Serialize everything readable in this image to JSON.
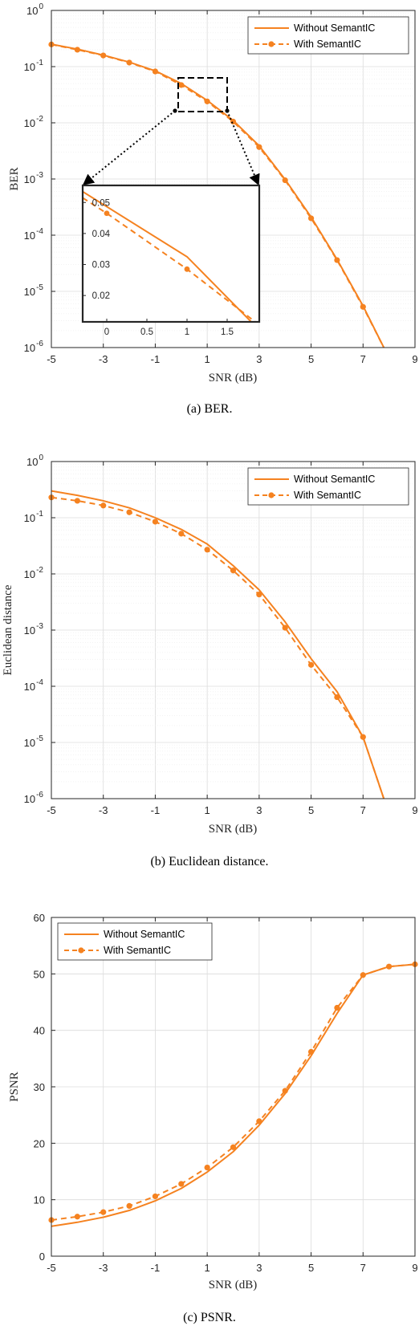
{
  "colors": {
    "series": "#f58220",
    "axis": "#262626",
    "grid": "#dcdcdc"
  },
  "chart_data": [
    {
      "type": "line",
      "caption": "(a)  BER.",
      "xlabel": "SNR (dB)",
      "ylabel": "BER",
      "xlim": [
        -5,
        9
      ],
      "ylim": [
        1e-06,
        1
      ],
      "yscale": "log",
      "grid": true,
      "legend_position": "top-right",
      "xticks": [
        -5,
        -3,
        -1,
        1,
        3,
        5,
        7,
        9
      ],
      "xtick_labels": [
        "-5",
        "-3",
        "-1",
        "1",
        "3",
        "5",
        "7",
        "9"
      ],
      "yticks": [
        0,
        -1,
        -2,
        -3,
        -4,
        -5,
        -6
      ],
      "ytick_labels": [
        "0",
        "-1",
        "-2",
        "-3",
        "-4",
        "-5",
        "-6"
      ],
      "ytick_base": "10",
      "series": [
        {
          "name": "Without SemantIC",
          "style": "solid",
          "markers": false,
          "x": [
            -5,
            -4,
            -3,
            -2,
            -1,
            0,
            1,
            2,
            3,
            4,
            5,
            6,
            7,
            7.8
          ],
          "y": [
            0.25,
            0.205,
            0.16,
            0.12,
            0.084,
            0.05,
            0.025,
            0.011,
            0.0039,
            0.00098,
            0.00021,
            3.7e-05,
            5.5e-06,
            1e-06
          ]
        },
        {
          "name": "With SemantIC",
          "style": "dashed",
          "markers": true,
          "x": [
            -5,
            -4,
            -3,
            -2,
            -1,
            0,
            1,
            2,
            3,
            4,
            5,
            6,
            7,
            7.8
          ],
          "y": [
            0.248,
            0.2,
            0.158,
            0.118,
            0.082,
            0.047,
            0.024,
            0.0105,
            0.0037,
            0.00095,
            0.0002,
            3.6e-05,
            5.3e-06,
            1e-06
          ]
        }
      ],
      "inset": {
        "xlim": [
          -0.3,
          1.9
        ],
        "ylim": [
          0.0115,
          0.0555
        ],
        "xticks": [
          0,
          0.5,
          1,
          1.5
        ],
        "xtick_labels": [
          "0",
          "0.5",
          "1",
          "1.5"
        ],
        "yticks": [
          0.02,
          0.03,
          0.04,
          0.05
        ],
        "ytick_labels": [
          "0.02",
          "0.03",
          "0.04",
          "0.05"
        ],
        "series": [
          {
            "name": "Without SemantIC",
            "x": [
              -0.3,
              1,
              1.8
            ],
            "y": [
              0.0535,
              0.0325,
              0.0115
            ]
          },
          {
            "name": "With SemantIC",
            "x": [
              -0.3,
              0,
              1,
              1.85
            ],
            "y": [
              0.0515,
              0.0465,
              0.0285,
              0.0115
            ],
            "marker_x": [
              0,
              1
            ],
            "marker_y": [
              0.0465,
              0.0285
            ]
          }
        ]
      }
    },
    {
      "type": "line",
      "caption": "(b)  Euclidean distance.",
      "xlabel": "SNR (dB)",
      "ylabel": "Euclidean distance",
      "xlim": [
        -5,
        9
      ],
      "ylim": [
        1e-06,
        1
      ],
      "yscale": "log",
      "grid": true,
      "legend_position": "top-right",
      "xticks": [
        -5,
        -3,
        -1,
        1,
        3,
        5,
        7,
        9
      ],
      "xtick_labels": [
        "-5",
        "-3",
        "-1",
        "1",
        "3",
        "5",
        "7",
        "9"
      ],
      "yticks": [
        0,
        -1,
        -2,
        -3,
        -4,
        -5,
        -6
      ],
      "ytick_labels": [
        "0",
        "-1",
        "-2",
        "-3",
        "-4",
        "-5",
        "-6"
      ],
      "ytick_base": "10",
      "series": [
        {
          "name": "Without SemantIC",
          "style": "solid",
          "markers": false,
          "x": [
            -5,
            -4,
            -3,
            -2,
            -1,
            0,
            1,
            2,
            3,
            4,
            5,
            6,
            7,
            7.8
          ],
          "y": [
            0.3,
            0.25,
            0.2,
            0.15,
            0.1,
            0.062,
            0.034,
            0.014,
            0.0052,
            0.0014,
            0.00031,
            8e-05,
            1.25e-05,
            1e-06
          ]
        },
        {
          "name": "With SemantIC",
          "style": "dashed",
          "markers": true,
          "x": [
            -5,
            -4,
            -3,
            -2,
            -1,
            0,
            1,
            2,
            3,
            4,
            5,
            6,
            7,
            7.8
          ],
          "y": [
            0.23,
            0.2,
            0.165,
            0.125,
            0.085,
            0.052,
            0.027,
            0.0115,
            0.0043,
            0.0011,
            0.00024,
            6.4e-05,
            1.25e-05,
            1e-06
          ]
        }
      ]
    },
    {
      "type": "line",
      "caption": "(c)  PSNR.",
      "xlabel": "SNR (dB)",
      "ylabel": "PSNR",
      "xlim": [
        -5,
        9
      ],
      "ylim": [
        0,
        60
      ],
      "yscale": "linear",
      "grid": true,
      "legend_position": "top-left",
      "xticks": [
        -5,
        -3,
        -1,
        1,
        3,
        5,
        7,
        9
      ],
      "xtick_labels": [
        "-5",
        "-3",
        "-1",
        "1",
        "3",
        "5",
        "7",
        "9"
      ],
      "yticks": [
        0,
        10,
        20,
        30,
        40,
        50,
        60
      ],
      "ytick_labels": [
        "0",
        "10",
        "20",
        "30",
        "40",
        "50",
        "60"
      ],
      "series": [
        {
          "name": "Without SemantIC",
          "style": "solid",
          "markers": false,
          "x": [
            -5,
            -4,
            -3,
            -2,
            -1,
            0,
            1,
            2,
            3,
            4,
            5,
            6,
            7,
            8,
            9
          ],
          "y": [
            5.3,
            6.0,
            6.9,
            8.1,
            9.8,
            12.0,
            14.9,
            18.5,
            23.2,
            28.8,
            35.5,
            43.0,
            49.8,
            51.3,
            51.7
          ]
        },
        {
          "name": "With SemantIC",
          "style": "dashed",
          "markers": true,
          "x": [
            -5,
            -4,
            -3,
            -2,
            -1,
            0,
            1,
            2,
            3,
            4,
            5,
            6,
            7,
            8,
            9
          ],
          "y": [
            6.4,
            7.0,
            7.8,
            8.9,
            10.6,
            12.8,
            15.7,
            19.3,
            23.9,
            29.3,
            36.2,
            44.0,
            49.8,
            51.3,
            51.7
          ]
        }
      ]
    }
  ]
}
